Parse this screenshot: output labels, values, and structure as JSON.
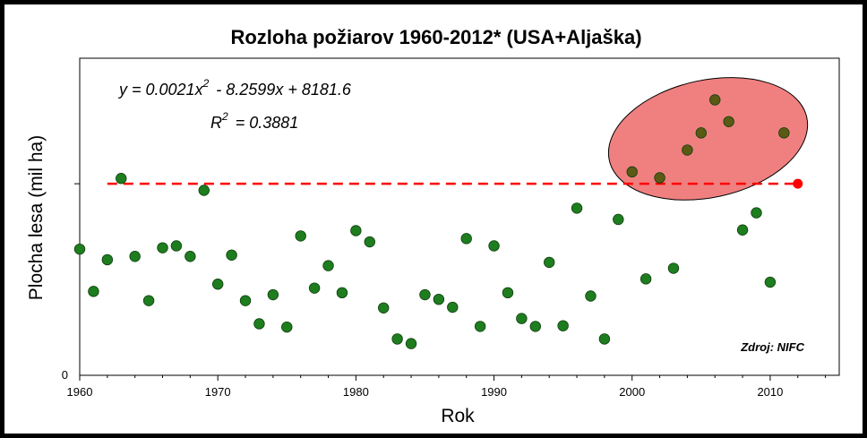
{
  "chart_data": {
    "type": "scatter",
    "title": "Rozloha požiarov 1960-2012* (USA+Aljaška)",
    "xlabel": "Rok",
    "ylabel": "Plocha lesa (mil ha)",
    "xlim": [
      1960,
      2015
    ],
    "ylim": [
      0,
      4.8
    ],
    "x_ticks": [
      "1960",
      "1970",
      "1980",
      "1990",
      "2000",
      "2010"
    ],
    "y_ticks": [
      "0"
    ],
    "equation_line1": "y = 0.0021x",
    "equation_line1_exp": "2",
    "equation_line1_rest": "- 8.2599x + 8181.6",
    "equation_line2_base": "R",
    "equation_line2_exp": "2",
    "equation_line2_rest": "= 0.3881",
    "source_note": "Zdroj: NIFC",
    "point_color": "#1e7d1e",
    "trend_color": "#1b8a1b",
    "reference_color": "#ff0000",
    "highlight_fill": "#f08080",
    "reference_level": 2.9,
    "reference_x": [
      1962,
      2012
    ],
    "reference_point": {
      "x": 2012,
      "y": 2.9
    },
    "trend_coefficients": {
      "a": 0.0021,
      "b": -8.2599,
      "c": 8181.6
    },
    "series": [
      {
        "x": [
          1960,
          1961,
          1962,
          1963,
          1964,
          1965,
          1966,
          1967,
          1968,
          1969,
          1970,
          1971,
          1972,
          1973,
          1974,
          1975,
          1976,
          1977,
          1978,
          1979,
          1980,
          1981,
          1982,
          1983,
          1984,
          1985,
          1986,
          1987,
          1988,
          1989,
          1990,
          1991,
          1992,
          1993,
          1994,
          1995,
          1996,
          1997,
          1998,
          1999,
          2000,
          2001,
          2002,
          2003,
          2004,
          2005,
          2006,
          2007,
          2008,
          2009,
          2010,
          2011
        ],
        "y": [
          1.91,
          1.27,
          1.75,
          2.98,
          1.8,
          1.13,
          1.93,
          1.96,
          1.8,
          2.8,
          1.38,
          1.82,
          1.13,
          0.78,
          1.22,
          0.73,
          2.11,
          1.32,
          1.66,
          1.25,
          2.19,
          2.02,
          1.02,
          0.55,
          0.48,
          1.22,
          1.15,
          1.03,
          2.07,
          0.74,
          1.96,
          1.25,
          0.86,
          0.74,
          1.71,
          0.75,
          2.53,
          1.2,
          0.55,
          2.36,
          3.08,
          1.46,
          2.99,
          1.62,
          3.41,
          3.67,
          4.17,
          3.84,
          2.2,
          2.46,
          1.41,
          3.67
        ]
      }
    ],
    "highlighted_x": [
      2000,
      2002,
      2004,
      2005,
      2006,
      2007,
      2011
    ]
  }
}
